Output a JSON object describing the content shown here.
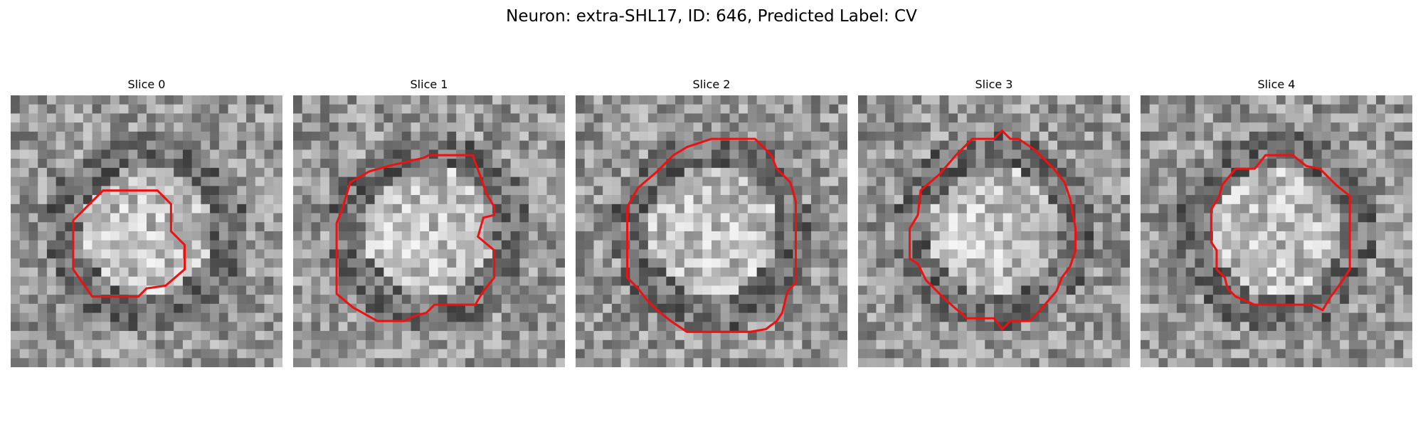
{
  "figure": {
    "title": "Neuron: extra-SHL17, ID: 646, Predicted Label: CV"
  },
  "panels": [
    {
      "title": "Slice 0",
      "outline_color": "#ee1111"
    },
    {
      "title": "Slice 1",
      "outline_color": "#ee1111"
    },
    {
      "title": "Slice 2",
      "outline_color": "#ee1111"
    },
    {
      "title": "Slice 3",
      "outline_color": "#ee1111"
    },
    {
      "title": "Slice 4",
      "outline_color": "#ee1111"
    }
  ]
}
